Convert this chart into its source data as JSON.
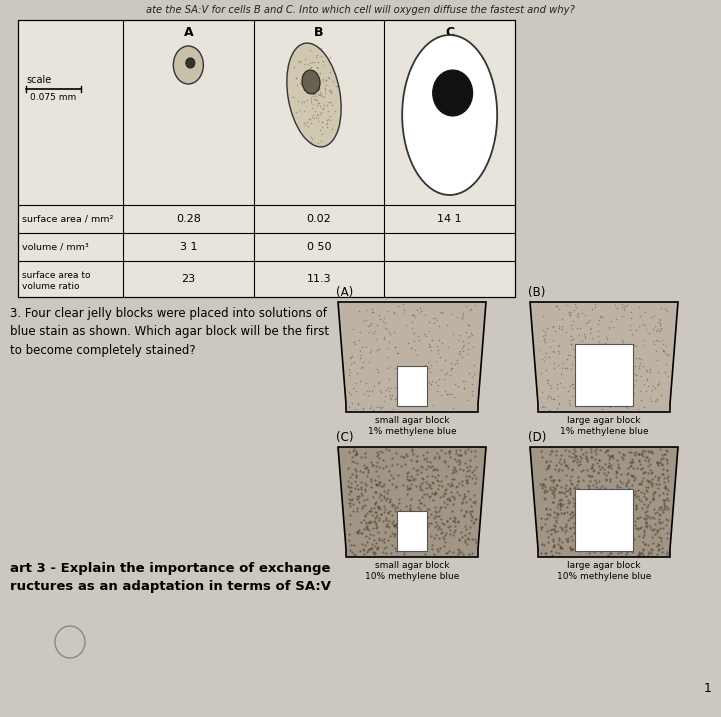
{
  "bg_color": "#ccc8c0",
  "header_text": "ate the SA:V for cells B and C. Into which cell will oxygen diffuse the fastest and why?",
  "col_headers": [
    "A",
    "B",
    "C"
  ],
  "row_labels": [
    "surface area / mm²",
    "volume / mm³",
    "surface area to\nvolume ratio"
  ],
  "table_data": [
    [
      "0.28",
      "3 1",
      "23"
    ],
    [
      "0.02",
      "0 50",
      "11.3"
    ],
    [
      "14 1",
      "",
      ""
    ]
  ],
  "scale_label": "scale",
  "scale_value": "0.075 mm",
  "question3_text": "3. Four clear jelly blocks were placed into solutions of\nblue stain as shown. Which agar block will be the first\nto become completely stained?",
  "block_labels": [
    "(A)",
    "(B)",
    "(C)",
    "(D)"
  ],
  "block_sublabels": [
    "small agar block\n1% methylene blue",
    "large agar block\n1% methylene blue",
    "small agar block\n10% methylene blue",
    "large agar block\n10% methylene blue"
  ],
  "part3_text": "art 3 - Explain the importance of exchange\nructures as an adaptation in terms of SA:V",
  "page_number": "1",
  "stain_color_light": "#b8aa98",
  "stain_color_dense": "#9a8c7c",
  "dot_color_light": "#7a6a55",
  "dot_color_dense": "#5a4a38"
}
